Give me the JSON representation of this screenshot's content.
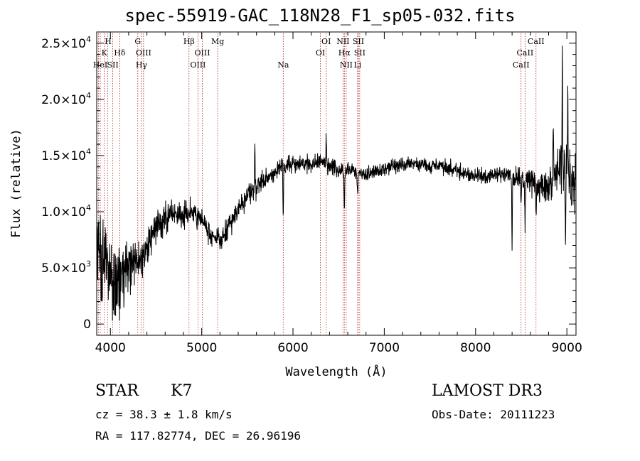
{
  "title": "spec-55919-GAC_118N28_F1_sp05-032.fits",
  "info": {
    "object_class": "STAR",
    "subclass": "K7",
    "survey": "LAMOST DR3",
    "cz": "cz = 38.3 ± 1.8 km/s",
    "obs_date": "Obs-Date: 20111223",
    "radec": "RA = 117.82774, DEC =  26.96196"
  },
  "chart_data": {
    "type": "line",
    "title": "spec-55919-GAC_118N28_F1_sp05-032.fits",
    "xlabel": "Wavelength (Å)",
    "ylabel": "Flux (relative)",
    "xlim": [
      3850,
      9100
    ],
    "ylim": [
      -1000,
      26000
    ],
    "x_ticks": [
      4000,
      5000,
      6000,
      7000,
      8000,
      9000
    ],
    "x_tick_labels": [
      "4000",
      "5000",
      "6000",
      "7000",
      "8000",
      "9000"
    ],
    "y_ticks": [
      0,
      5000,
      10000,
      15000,
      20000,
      25000
    ],
    "y_tick_labels": [
      {
        "mant": "0",
        "exp": ""
      },
      {
        "mant": "5.0×10",
        "exp": "3"
      },
      {
        "mant": "1.0×10",
        "exp": "4"
      },
      {
        "mant": "1.5×10",
        "exp": "4"
      },
      {
        "mant": "2.0×10",
        "exp": "4"
      },
      {
        "mant": "2.5×10",
        "exp": "4"
      }
    ],
    "grid": false,
    "line_color": "#000000",
    "marker_color": "#b22222",
    "spectrum_anchors": [
      [
        3870,
        7000
      ],
      [
        3900,
        5000
      ],
      [
        3950,
        5500
      ],
      [
        4000,
        4500
      ],
      [
        4050,
        3000
      ],
      [
        4100,
        4000
      ],
      [
        4200,
        5000
      ],
      [
        4300,
        5500
      ],
      [
        4400,
        7000
      ],
      [
        4500,
        8500
      ],
      [
        4600,
        9500
      ],
      [
        4700,
        9800
      ],
      [
        4800,
        9600
      ],
      [
        4900,
        9900
      ],
      [
        5000,
        9500
      ],
      [
        5100,
        8000
      ],
      [
        5200,
        7500
      ],
      [
        5300,
        8800
      ],
      [
        5400,
        10200
      ],
      [
        5500,
        11500
      ],
      [
        5600,
        12000
      ],
      [
        5700,
        13000
      ],
      [
        5800,
        13500
      ],
      [
        5900,
        14000
      ],
      [
        6000,
        14300
      ],
      [
        6100,
        14300
      ],
      [
        6200,
        14200
      ],
      [
        6300,
        14500
      ],
      [
        6400,
        14000
      ],
      [
        6500,
        13800
      ],
      [
        6600,
        13600
      ],
      [
        6700,
        13500
      ],
      [
        6800,
        13200
      ],
      [
        6900,
        13500
      ],
      [
        7000,
        13800
      ],
      [
        7100,
        14000
      ],
      [
        7200,
        14200
      ],
      [
        7300,
        14300
      ],
      [
        7400,
        14200
      ],
      [
        7500,
        14000
      ],
      [
        7600,
        14200
      ],
      [
        7700,
        13800
      ],
      [
        7800,
        13600
      ],
      [
        7900,
        13400
      ],
      [
        8000,
        13200
      ],
      [
        8100,
        13200
      ],
      [
        8200,
        13300
      ],
      [
        8300,
        13200
      ],
      [
        8400,
        13300
      ],
      [
        8500,
        13000
      ],
      [
        8600,
        12800
      ],
      [
        8700,
        12000
      ],
      [
        8800,
        12500
      ],
      [
        8900,
        13500
      ],
      [
        9000,
        14000
      ],
      [
        9050,
        12000
      ]
    ],
    "spectrum_features": [
      {
        "x": 5582,
        "dy": 4800,
        "w": 3
      },
      {
        "x": 5893,
        "dy": -4500,
        "w": 3
      },
      {
        "x": 6364,
        "dy": 2000,
        "w": 4
      },
      {
        "x": 6563,
        "dy": -3500,
        "w": 4
      },
      {
        "x": 6708,
        "dy": -2000,
        "w": 4
      },
      {
        "x": 8400,
        "dy": -6500,
        "w": 3
      },
      {
        "x": 8498,
        "dy": -2500,
        "w": 4
      },
      {
        "x": 8542,
        "dy": -3500,
        "w": 4
      },
      {
        "x": 8662,
        "dy": -2500,
        "w": 4
      },
      {
        "x": 8850,
        "dy": 5000,
        "w": 4
      },
      {
        "x": 8950,
        "dy": 9500,
        "w": 3
      },
      {
        "x": 8985,
        "dy": -8000,
        "w": 3
      },
      {
        "x": 9010,
        "dy": 8000,
        "w": 3
      }
    ],
    "spectrum_noise": [
      [
        3850,
        2500
      ],
      [
        4150,
        2500
      ],
      [
        4250,
        1200
      ],
      [
        4800,
        800
      ],
      [
        5600,
        700
      ],
      [
        6000,
        550
      ],
      [
        6800,
        500
      ],
      [
        7600,
        450
      ],
      [
        8200,
        500
      ],
      [
        8700,
        900
      ],
      [
        9100,
        2200
      ]
    ],
    "lines": [
      {
        "x": 3868,
        "labels": [
          "HeI"
        ]
      },
      {
        "x": 3889,
        "labels": []
      },
      {
        "x": 3934,
        "labels": [
          "K"
        ]
      },
      {
        "x": 3969,
        "labels": [
          "H"
        ]
      },
      {
        "x": 4026,
        "labels": [
          "SII"
        ]
      },
      {
        "x": 4102,
        "labels": [
          "Hδ"
        ]
      },
      {
        "x": 4300,
        "labels": [
          "G"
        ]
      },
      {
        "x": 4340,
        "labels": [
          "Hγ"
        ]
      },
      {
        "x": 4363,
        "labels": [
          "OIII"
        ]
      },
      {
        "x": 4861,
        "labels": [
          "Hβ"
        ]
      },
      {
        "x": 4959,
        "labels": [
          "OIII"
        ]
      },
      {
        "x": 5007,
        "labels": [
          "OIII"
        ]
      },
      {
        "x": 5175,
        "labels": [
          "Mg"
        ]
      },
      {
        "x": 5893,
        "labels": [
          "Na"
        ]
      },
      {
        "x": 6300,
        "labels": [
          "OI"
        ]
      },
      {
        "x": 6364,
        "labels": [
          "OI"
        ]
      },
      {
        "x": 6548,
        "labels": [
          "NII"
        ]
      },
      {
        "x": 6563,
        "labels": [
          "Hα"
        ]
      },
      {
        "x": 6583,
        "labels": [
          "NII"
        ]
      },
      {
        "x": 6708,
        "labels": [
          "Li"
        ]
      },
      {
        "x": 6716,
        "labels": [
          "SII"
        ]
      },
      {
        "x": 6731,
        "labels": [
          "SII"
        ]
      },
      {
        "x": 8498,
        "labels": [
          "CaII"
        ]
      },
      {
        "x": 8542,
        "labels": [
          "CaII"
        ]
      },
      {
        "x": 8662,
        "labels": [
          "CaII"
        ]
      }
    ],
    "line_label_rows": [
      {
        "row": 0,
        "labels": [
          {
            "x": 3975,
            "text": "H"
          },
          {
            "x": 4300,
            "text": "G"
          },
          {
            "x": 4861,
            "text": "Hβ"
          },
          {
            "x": 5175,
            "text": "Mg"
          },
          {
            "x": 6364,
            "text": "OI"
          },
          {
            "x": 6548,
            "text": "NII"
          },
          {
            "x": 6716,
            "text": "SII"
          },
          {
            "x": 8662,
            "text": "CaII"
          }
        ]
      },
      {
        "row": 1,
        "labels": [
          {
            "x": 3934,
            "text": "K"
          },
          {
            "x": 4102,
            "text": "Hδ"
          },
          {
            "x": 4363,
            "text": "OIII"
          },
          {
            "x": 5007,
            "text": "OIII"
          },
          {
            "x": 6300,
            "text": "OI"
          },
          {
            "x": 6563,
            "text": "Hα"
          },
          {
            "x": 6731,
            "text": "SII"
          },
          {
            "x": 8542,
            "text": "CaII"
          }
        ]
      },
      {
        "row": 2,
        "labels": [
          {
            "x": 3889,
            "text": "HeI"
          },
          {
            "x": 4026,
            "text": "SII"
          },
          {
            "x": 4340,
            "text": "Hγ"
          },
          {
            "x": 4959,
            "text": "OIII"
          },
          {
            "x": 5893,
            "text": "Na"
          },
          {
            "x": 6583,
            "text": "NII"
          },
          {
            "x": 6708,
            "text": "Li"
          },
          {
            "x": 8498,
            "text": "CaII"
          }
        ]
      }
    ]
  }
}
